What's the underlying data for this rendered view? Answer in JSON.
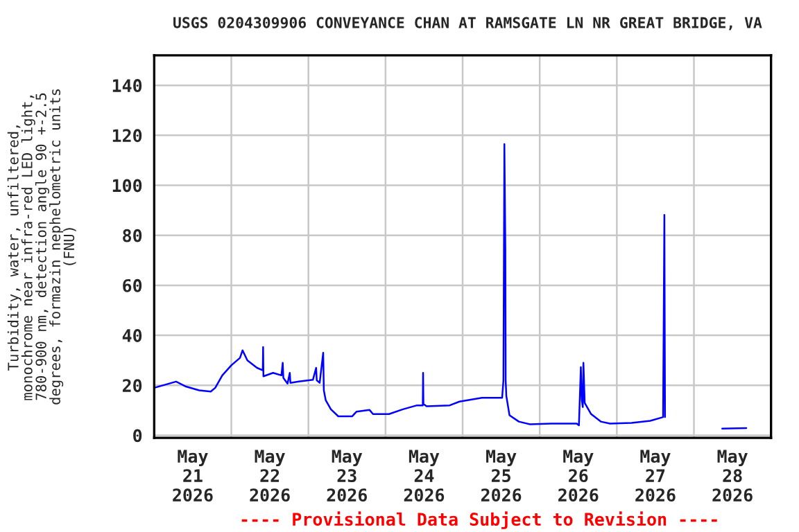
{
  "chart_data": {
    "type": "line",
    "title": "USGS 0204309906 CONVEYANCE CHAN AT RAMSGATE LN NR GREAT BRIDGE, VA",
    "ylabel": "Turbidity, water, unfiltered,\nmonochrome near infra-red LED light,\n780-900 nm, detection angle 90 +-2.5\ndegrees, formazin nephelometric units\n(FNU)",
    "annotations": [
      "---- Provisional Data Subject to Revision ----"
    ],
    "x": [
      "2026-05-21T00:00",
      "2026-05-21T06:48",
      "2026-05-21T09:42",
      "2026-05-21T14:00",
      "2026-05-21T17:36",
      "2026-05-21T19:00",
      "2026-05-21T21:12",
      "2026-05-22T00:00",
      "2026-05-22T02:42",
      "2026-05-22T03:30",
      "2026-05-22T05:00",
      "2026-05-22T08:00",
      "2026-05-22T09:48",
      "2026-05-22T09:54",
      "2026-05-22T10:00",
      "2026-05-22T13:00",
      "2026-05-22T15:36",
      "2026-05-22T16:00",
      "2026-05-22T16:12",
      "2026-05-22T17:30",
      "2026-05-22T18:12",
      "2026-05-22T18:24",
      "2026-05-22T21:00",
      "2026-05-23T01:24",
      "2026-05-23T02:24",
      "2026-05-23T02:36",
      "2026-05-23T03:30",
      "2026-05-23T04:36",
      "2026-05-23T04:48",
      "2026-05-23T05:24",
      "2026-05-23T07:00",
      "2026-05-23T09:18",
      "2026-05-23T13:36",
      "2026-05-23T15:00",
      "2026-05-23T19:00",
      "2026-05-23T20:06",
      "2026-05-24T01:06",
      "2026-05-24T05:24",
      "2026-05-24T09:48",
      "2026-05-24T11:36",
      "2026-05-24T11:42",
      "2026-05-24T11:48",
      "2026-05-24T12:48",
      "2026-05-24T20:00",
      "2026-05-24T23:00",
      "2026-05-25T06:00",
      "2026-05-25T12:18",
      "2026-05-25T12:42",
      "2026-05-25T13:00",
      "2026-05-25T13:18",
      "2026-05-25T13:24",
      "2026-05-25T13:36",
      "2026-05-25T14:36",
      "2026-05-25T17:30",
      "2026-05-25T21:00",
      "2026-05-26T03:36",
      "2026-05-26T11:30",
      "2026-05-26T12:12",
      "2026-05-26T12:48",
      "2026-05-26T13:06",
      "2026-05-26T13:24",
      "2026-05-26T13:36",
      "2026-05-26T14:00",
      "2026-05-26T16:00",
      "2026-05-26T19:00",
      "2026-05-26T21:54",
      "2026-05-27T04:36",
      "2026-05-27T10:24",
      "2026-05-27T14:24",
      "2026-05-27T14:48",
      "2026-05-27T15:00",
      "2026-05-27T20:00",
      "2026-05-28T08:48",
      "2026-05-28T16:18"
    ],
    "series": [
      {
        "color": "#0000ff",
        "values": [
          19,
          21.5,
          19.6,
          18,
          17.5,
          19,
          24,
          28,
          31,
          34,
          30,
          27,
          26,
          35.3,
          23.6,
          25,
          24,
          29,
          23,
          20.7,
          25,
          21,
          21.5,
          22.2,
          27,
          22,
          21,
          33,
          18,
          14,
          10.4,
          7.6,
          7.6,
          9.5,
          10.2,
          8.5,
          8.5,
          10.4,
          12,
          12,
          25,
          12.5,
          11.6,
          12,
          13.5,
          15,
          15,
          22,
          116.5,
          74.5,
          22,
          15.8,
          8,
          5.5,
          4.4,
          4.7,
          4.7,
          4,
          27.3,
          14,
          11.3,
          29,
          13,
          8.5,
          5.5,
          4.7,
          5,
          5.8,
          7.3,
          88.2,
          7.3,
          null,
          2.7,
          2.9
        ]
      }
    ],
    "xlim": [
      "2026-05-21T00:00",
      "2026-05-29T00:00"
    ],
    "xticks": [
      {
        "value": "2026-05-21T12:00",
        "label": "May\n21\n2026"
      },
      {
        "value": "2026-05-22T12:00",
        "label": "May\n22\n2026"
      },
      {
        "value": "2026-05-23T12:00",
        "label": "May\n23\n2026"
      },
      {
        "value": "2026-05-24T12:00",
        "label": "May\n24\n2026"
      },
      {
        "value": "2026-05-25T12:00",
        "label": "May\n25\n2026"
      },
      {
        "value": "2026-05-26T12:00",
        "label": "May\n26\n2026"
      },
      {
        "value": "2026-05-27T12:00",
        "label": "May\n27\n2026"
      },
      {
        "value": "2026-05-28T12:00",
        "label": "May\n28\n2026"
      },
      {
        "value": "2026-05-22T00:00",
        "label": null
      },
      {
        "value": "2026-05-23T00:00",
        "label": null
      },
      {
        "value": "2026-05-24T00:00",
        "label": null
      },
      {
        "value": "2026-05-25T00:00",
        "label": null
      },
      {
        "value": "2026-05-26T00:00",
        "label": null
      },
      {
        "value": "2026-05-27T00:00",
        "label": null
      },
      {
        "value": "2026-05-28T00:00",
        "label": null
      }
    ],
    "ylim": [
      -1,
      152
    ],
    "yticks": [
      0,
      20,
      40,
      60,
      80,
      100,
      120,
      140
    ],
    "grid": true,
    "line_style": "solid"
  }
}
